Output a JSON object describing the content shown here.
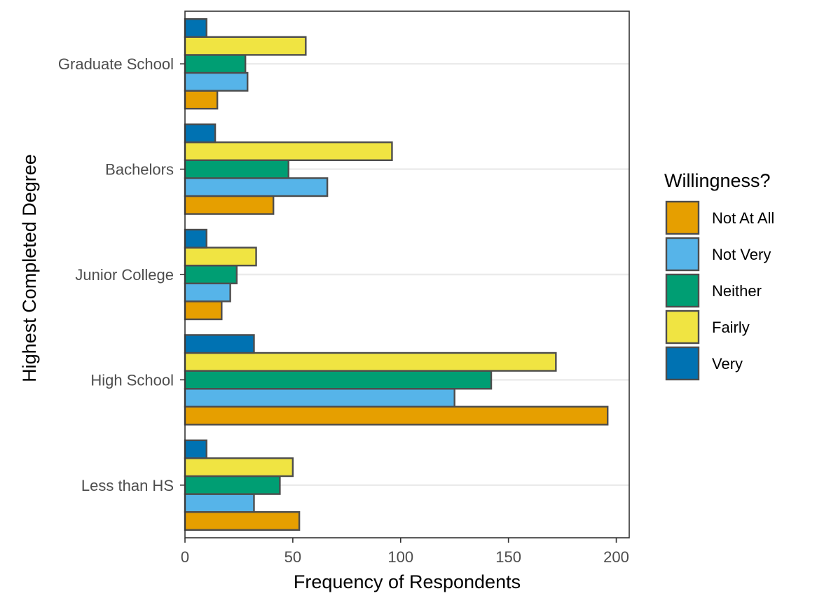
{
  "chart_data": {
    "type": "bar",
    "orientation": "horizontal",
    "categories": [
      "Less than HS",
      "High School",
      "Junior College",
      "Bachelors",
      "Graduate School"
    ],
    "series": [
      {
        "name": "Not At All",
        "color": "#E69F00",
        "values": [
          53,
          196,
          17,
          41,
          15
        ]
      },
      {
        "name": "Not Very",
        "color": "#56B4E9",
        "values": [
          32,
          125,
          21,
          66,
          29
        ]
      },
      {
        "name": "Neither",
        "color": "#009E73",
        "values": [
          44,
          142,
          24,
          48,
          28
        ]
      },
      {
        "name": "Fairly",
        "color": "#F0E442",
        "values": [
          50,
          172,
          33,
          96,
          56
        ]
      },
      {
        "name": "Very",
        "color": "#0072B2",
        "values": [
          10,
          32,
          10,
          14,
          10
        ]
      }
    ],
    "xlabel": "Frequency of Respondents",
    "ylabel": "Highest Completed Degree",
    "xlim": [
      0,
      200
    ],
    "xticks": [
      0,
      50,
      100,
      150,
      200
    ],
    "legend_title": "Willingness?",
    "legend_position": "right",
    "grid": "horizontal major only",
    "bar_outline_color": "#4d4d4d"
  }
}
